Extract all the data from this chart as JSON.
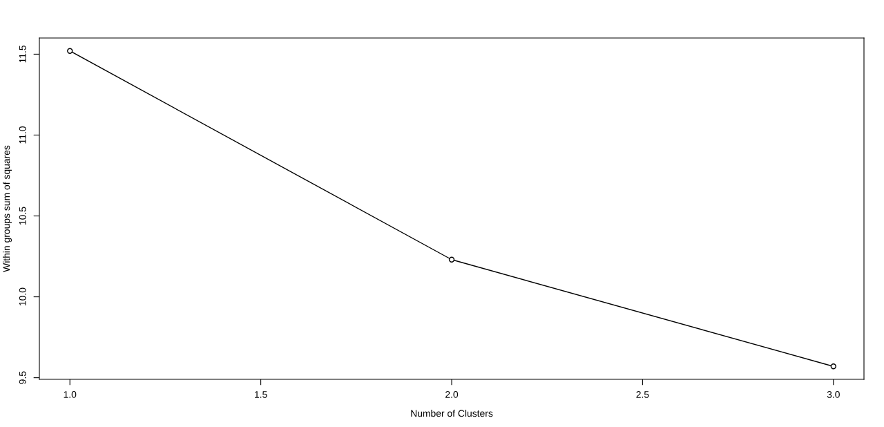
{
  "chart_data": {
    "type": "line",
    "xlabel": "Number of Clusters",
    "ylabel": "Within groups sum of squares",
    "x": [
      1,
      2,
      3
    ],
    "series": [
      {
        "color": "#000000",
        "values": [
          11.52,
          10.23,
          9.57
        ]
      }
    ],
    "xlim": [
      0.92,
      3.08
    ],
    "xticks": [
      {
        "value": 1,
        "label": "1.0"
      },
      1.5,
      {
        "value": 2,
        "label": "2.0"
      },
      2.5,
      {
        "value": 3,
        "label": "3.0"
      }
    ],
    "ylim": [
      9.49,
      11.6
    ],
    "yticks": [
      9.5,
      {
        "value": 10,
        "label": "10.0"
      },
      10.5,
      {
        "value": 11,
        "label": "11.0"
      },
      11.5
    ],
    "marker": "circle",
    "line_style": "solid",
    "grid": false
  }
}
